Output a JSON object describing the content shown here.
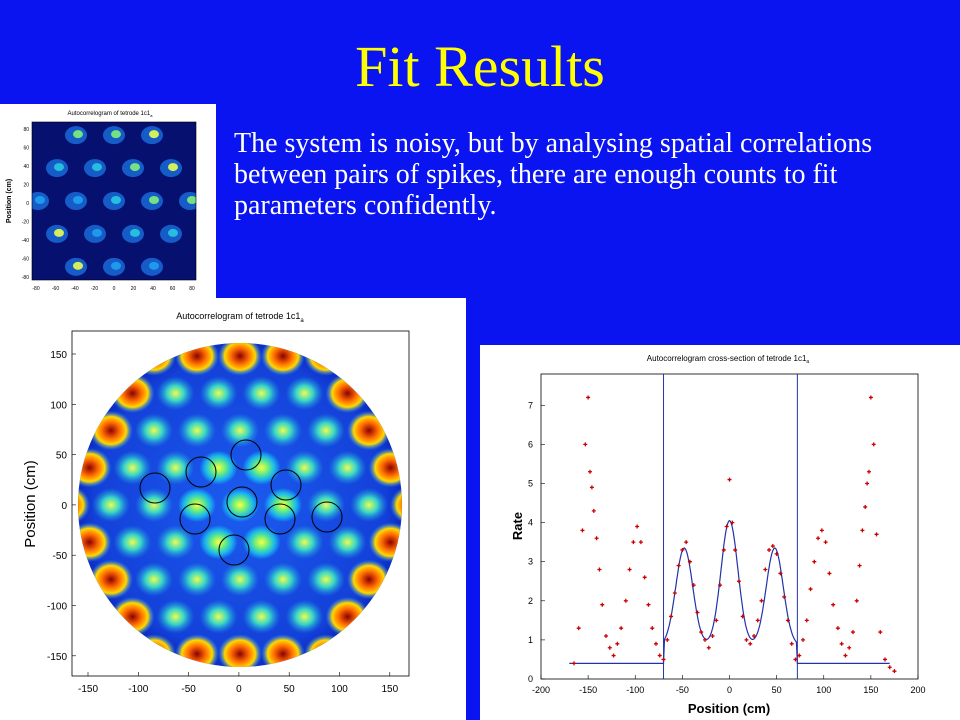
{
  "slide": {
    "title": "Fit Results",
    "body": "The system is noisy, but by analysing spatial correlations between pairs of spikes, there are enough counts to fit parameters confidently."
  },
  "colors": {
    "background": "#0a14f0",
    "title": "#ffff00",
    "body_text": "#ffffff",
    "data_points": "#cc0000",
    "fit_line": "#2233aa"
  },
  "small_heatmap": {
    "title": "Autocorrelogram of tetrode 1c1",
    "title_subscript": "a",
    "ylabel": "Position (cm)",
    "x_ticks": [
      "-80",
      "-60",
      "-40",
      "-20",
      "0",
      "20",
      "40",
      "60",
      "80"
    ],
    "y_ticks": [
      "80",
      "60",
      "40",
      "20",
      "0",
      "-20",
      "-40",
      "-60",
      "-80"
    ]
  },
  "large_heatmap": {
    "title": "Autocorrelogram of tetrode 1c1",
    "title_subscript": "a",
    "ylabel": "Position (cm)",
    "x_ticks": [
      "-150",
      "-100",
      "-50",
      "0",
      "50",
      "100",
      "150"
    ],
    "y_ticks": [
      "150",
      "100",
      "50",
      "0",
      "-50",
      "-100",
      "-150"
    ]
  },
  "chart_data": {
    "type": "scatter",
    "title": "Autocorrelogram cross-section of tetrode 1c1",
    "title_subscript": "a",
    "xlabel": "Position (cm)",
    "ylabel": "Rate",
    "xlim": [
      -200,
      200
    ],
    "ylim": [
      0,
      7.8
    ],
    "x_ticks": [
      "-200",
      "-150",
      "-100",
      "-50",
      "0",
      "50",
      "100",
      "150",
      "200"
    ],
    "y_ticks": [
      "0",
      "1",
      "2",
      "3",
      "4",
      "5",
      "6",
      "7"
    ],
    "vertical_lines": [
      -70,
      72
    ],
    "fit_peak_centers": [
      -48,
      0,
      48
    ],
    "fit_peak_heights": [
      3.35,
      4.05,
      3.35
    ],
    "fit_baseline": 0.4,
    "series": [
      {
        "x": [
          -165,
          -160,
          -156,
          -153,
          -150,
          -148,
          -146,
          -144,
          -141,
          -138,
          -135,
          -131,
          -127,
          -123,
          -119,
          -115,
          -110,
          -106,
          -102,
          -98,
          -94,
          -90,
          -86,
          -82,
          -78,
          -74,
          -70,
          -66,
          -62,
          -58,
          -54,
          -50,
          -46,
          -42,
          -38,
          -34,
          -30,
          -26,
          -22,
          -18,
          -14,
          -10,
          -6,
          -3,
          0,
          3,
          6,
          10,
          14,
          18,
          22,
          26,
          30,
          34,
          38,
          42,
          46,
          50,
          54,
          58,
          62,
          66,
          70,
          74,
          78,
          82,
          86,
          90,
          94,
          98,
          102,
          106,
          110,
          115,
          119,
          123,
          127,
          131,
          135,
          138,
          141,
          144,
          146,
          148,
          150,
          153,
          156,
          160,
          165,
          170,
          175
        ],
        "y": [
          0.4,
          1.3,
          3.8,
          6.0,
          7.2,
          5.3,
          4.9,
          4.3,
          3.6,
          2.8,
          1.9,
          1.1,
          0.8,
          0.6,
          0.9,
          1.3,
          2.0,
          2.8,
          3.5,
          3.9,
          3.5,
          2.6,
          1.9,
          1.3,
          0.9,
          0.6,
          0.5,
          1.0,
          1.6,
          2.2,
          2.9,
          3.3,
          3.5,
          3.0,
          2.4,
          1.7,
          1.2,
          1.0,
          0.8,
          1.1,
          1.5,
          2.4,
          3.3,
          3.9,
          5.1,
          4.0,
          3.3,
          2.5,
          1.6,
          1.0,
          0.9,
          1.1,
          1.5,
          2.0,
          2.8,
          3.3,
          3.4,
          3.2,
          2.7,
          2.1,
          1.5,
          0.9,
          0.5,
          0.6,
          1.0,
          1.5,
          2.3,
          3.0,
          3.6,
          3.8,
          3.5,
          2.7,
          1.9,
          1.3,
          0.9,
          0.6,
          0.8,
          1.2,
          2.0,
          2.9,
          3.8,
          4.4,
          5.0,
          5.3,
          7.2,
          6.0,
          3.7,
          1.2,
          0.5,
          0.3,
          0.2
        ]
      }
    ]
  }
}
